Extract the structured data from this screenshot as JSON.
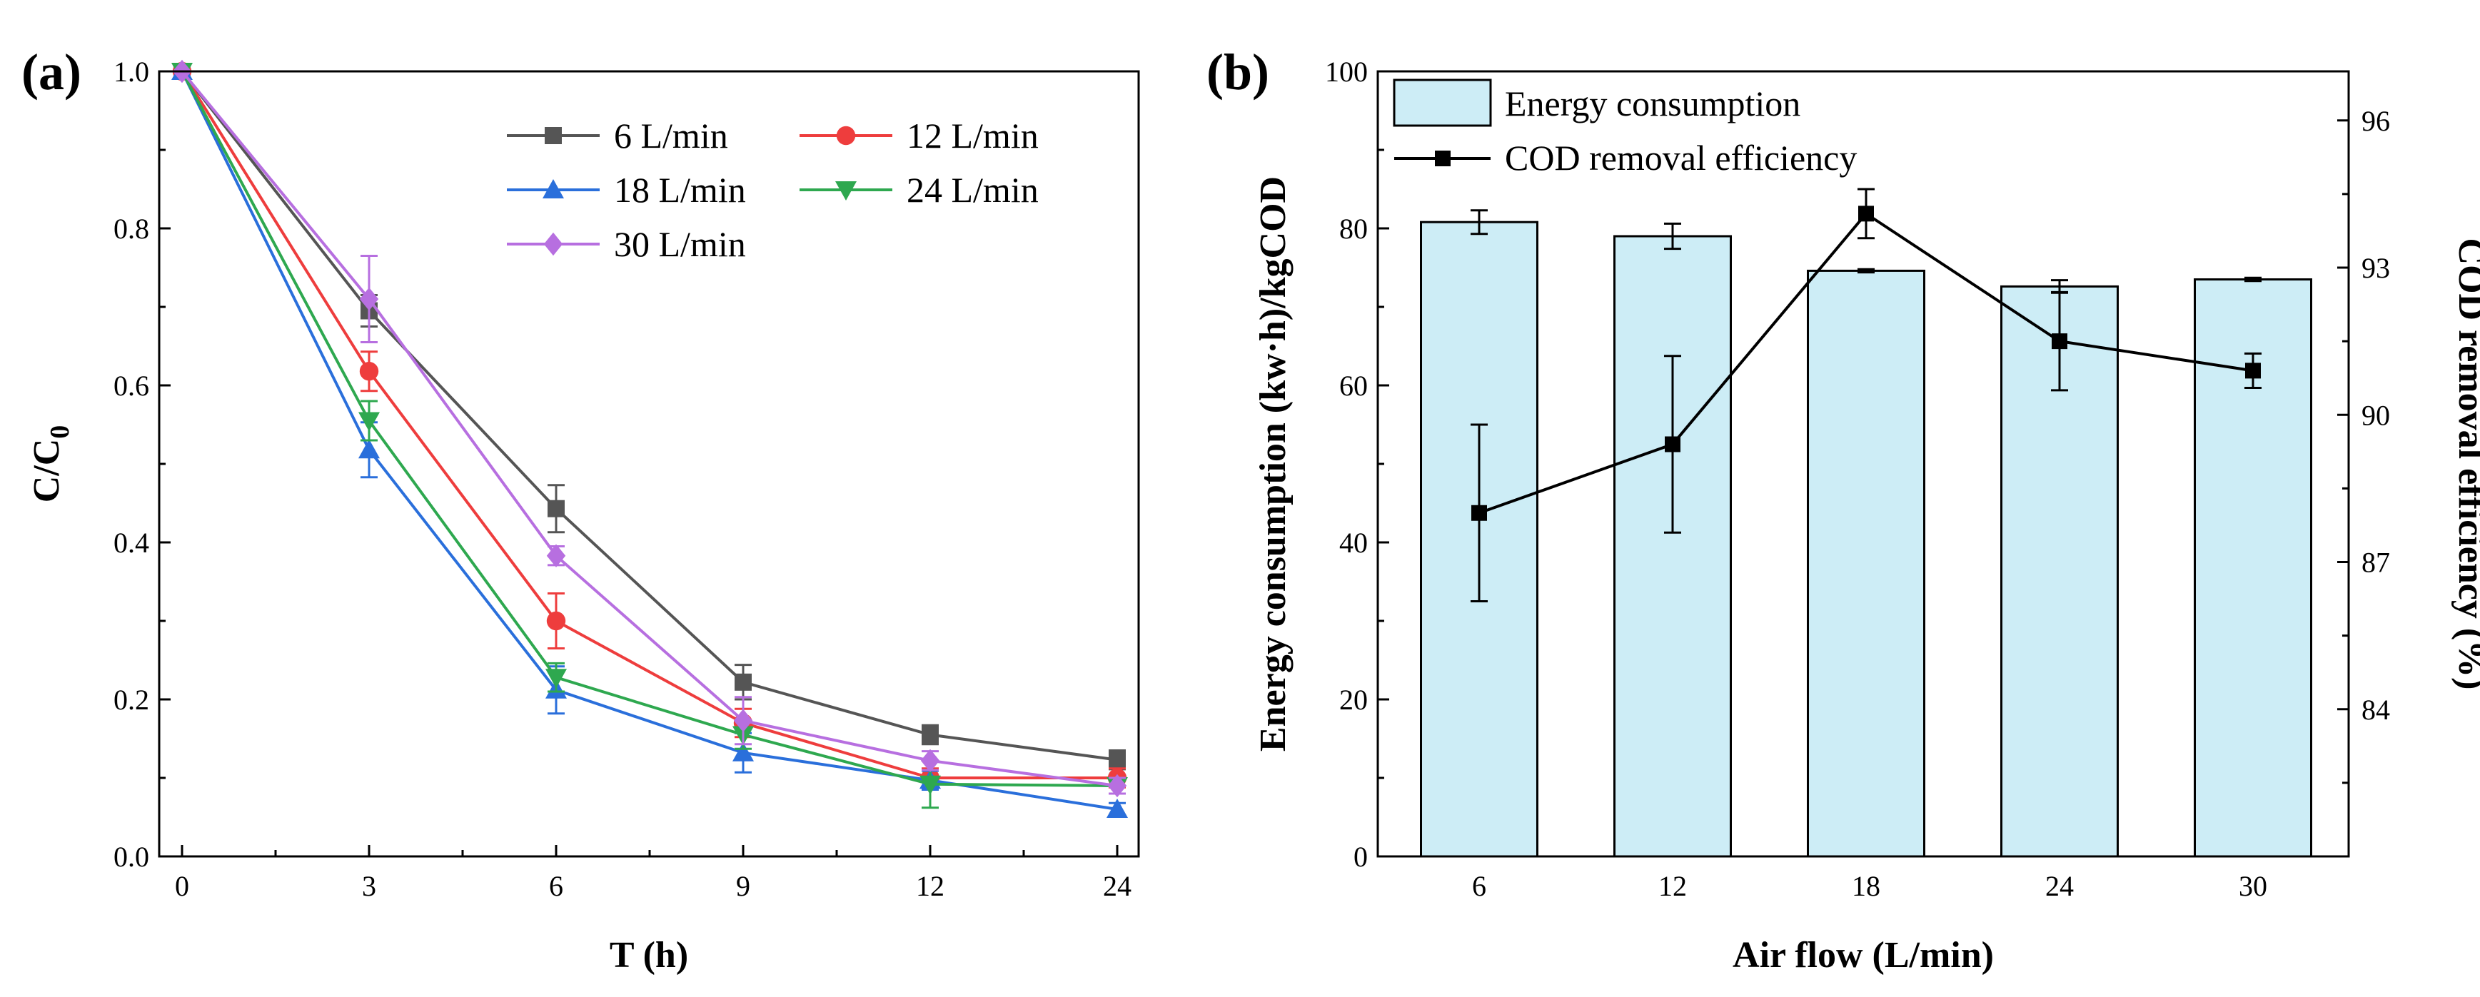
{
  "chart_data": [
    {
      "type": "line",
      "panel_label": "(a)",
      "xlabel": "T (h)",
      "ylabel_main": "C/C",
      "ylabel_sub": "0",
      "x": [
        "0",
        "3",
        "6",
        "9",
        "12",
        "24"
      ],
      "ylim": [
        0,
        1.0
      ],
      "yticks": [
        "0.0",
        "0.2",
        "0.4",
        "0.6",
        "0.8",
        "1.0"
      ],
      "series": [
        {
          "name": "6 L/min",
          "color": "#555555",
          "marker": "square",
          "values": [
            1.0,
            0.695,
            0.443,
            0.222,
            0.155,
            0.123
          ],
          "errors": [
            0,
            0.02,
            0.03,
            0.022,
            0.012,
            0.012
          ]
        },
        {
          "name": "12 L/min",
          "color": "#ee3d3d",
          "marker": "circle",
          "values": [
            1.0,
            0.618,
            0.3,
            0.17,
            0.1,
            0.1
          ],
          "errors": [
            0,
            0.025,
            0.035,
            0.018,
            0.012,
            0.012
          ]
        },
        {
          "name": "18 L/min",
          "color": "#2a6fdb",
          "marker": "triangle-up",
          "values": [
            1.0,
            0.518,
            0.212,
            0.132,
            0.097,
            0.06
          ],
          "errors": [
            0,
            0.035,
            0.03,
            0.025,
            0.012,
            0.008
          ]
        },
        {
          "name": "24 L/min",
          "color": "#2ea84f",
          "marker": "triangle-down",
          "values": [
            1.0,
            0.555,
            0.228,
            0.155,
            0.092,
            0.09
          ],
          "errors": [
            0,
            0.025,
            0.018,
            0.018,
            0.03,
            0.01
          ]
        },
        {
          "name": "30 L/min",
          "color": "#b76fe0",
          "marker": "diamond",
          "values": [
            1.0,
            0.71,
            0.383,
            0.173,
            0.122,
            0.09
          ],
          "errors": [
            0,
            0.055,
            0.012,
            0.03,
            0.012,
            0.01
          ]
        }
      ]
    },
    {
      "type": "bar",
      "panel_label": "(b)",
      "xlabel": "Air flow (L/min)",
      "ylabel_left": "Energy consumption (kw·h)/kgCOD",
      "ylabel_right": "COD removal efficiency (%)",
      "categories": [
        "6",
        "12",
        "18",
        "24",
        "30"
      ],
      "ylim_left": [
        0,
        100
      ],
      "yticks_left": [
        "0",
        "20",
        "40",
        "60",
        "80",
        "100"
      ],
      "ylim_right": [
        81,
        97
      ],
      "yticks_right": [
        "84",
        "87",
        "90",
        "93",
        "96"
      ],
      "bar_series": {
        "name": "Energy consumption",
        "color": "#cdedf6",
        "values": [
          80.8,
          79.0,
          74.6,
          72.6,
          73.5
        ],
        "errors": [
          1.5,
          1.6,
          0.2,
          0.8,
          0.2
        ]
      },
      "line_series": {
        "name": "COD removal efficiency",
        "color": "#000000",
        "values": [
          88.0,
          89.4,
          94.1,
          91.5,
          90.9
        ],
        "errors": [
          1.8,
          1.8,
          0.5,
          1.0,
          0.35
        ]
      }
    }
  ]
}
